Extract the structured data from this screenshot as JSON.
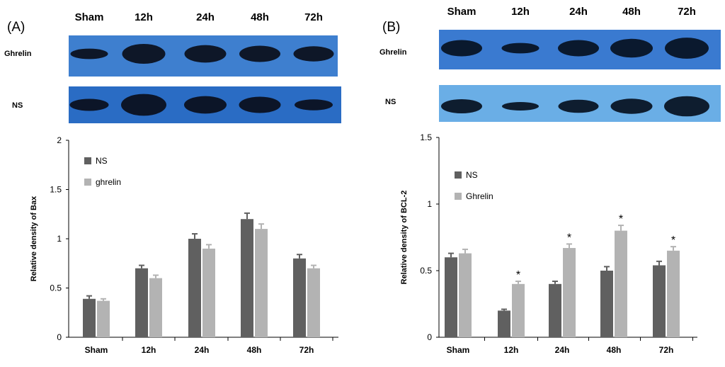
{
  "panels": [
    {
      "label": "(A)",
      "blot": {
        "lanes": [
          "Sham",
          "12h",
          "24h",
          "48h",
          "72h"
        ],
        "rows": [
          {
            "label": "Ghrelin",
            "bg": "#3e7fcf",
            "bands": [
              0.45,
              0.85,
              0.75,
              0.7,
              0.65
            ]
          },
          {
            "label": "NS",
            "bg": "#2a6cc4",
            "bands": [
              0.55,
              1.0,
              0.8,
              0.75,
              0.5
            ]
          }
        ],
        "band_color": "#0a0e1a"
      },
      "chart_data": {
        "type": "bar",
        "categories": [
          "Sham",
          "12h",
          "24h",
          "48h",
          "72h"
        ],
        "series": [
          {
            "name": "NS",
            "values": [
              0.39,
              0.7,
              1.0,
              1.2,
              0.8
            ],
            "errors": [
              0.03,
              0.03,
              0.05,
              0.06,
              0.04
            ],
            "color": "#606060"
          },
          {
            "name": "ghrelin",
            "values": [
              0.37,
              0.6,
              0.9,
              1.1,
              0.7
            ],
            "errors": [
              0.02,
              0.03,
              0.04,
              0.05,
              0.03
            ],
            "color": "#b3b3b3"
          }
        ],
        "ylabel": "Relative density of Bax",
        "ylim": [
          0,
          2
        ],
        "yticks": [
          "0",
          "0.5",
          "1",
          "1.5",
          "2"
        ],
        "legend_position": "top-left",
        "significance": [
          "",
          "",
          "",
          "",
          ""
        ]
      }
    },
    {
      "label": "(B)",
      "blot": {
        "lanes": [
          "Sham",
          "12h",
          "24h",
          "48h",
          "72h"
        ],
        "rows": [
          {
            "label": "Ghrelin",
            "bg": "#3a7ad0",
            "bands": [
              0.7,
              0.45,
              0.7,
              0.8,
              0.9
            ]
          },
          {
            "label": "NS",
            "bg": "#6aaee6",
            "bands": [
              0.7,
              0.4,
              0.65,
              0.75,
              1.0
            ]
          }
        ],
        "band_color": "#061020"
      },
      "chart_data": {
        "type": "bar",
        "categories": [
          "Sham",
          "12h",
          "24h",
          "48h",
          "72h"
        ],
        "series": [
          {
            "name": "NS",
            "values": [
              0.6,
              0.2,
              0.4,
              0.5,
              0.54
            ],
            "errors": [
              0.03,
              0.01,
              0.02,
              0.03,
              0.03
            ],
            "color": "#606060"
          },
          {
            "name": "Ghrelin",
            "values": [
              0.63,
              0.4,
              0.67,
              0.8,
              0.65
            ],
            "errors": [
              0.03,
              0.02,
              0.03,
              0.04,
              0.03
            ],
            "color": "#b3b3b3"
          }
        ],
        "ylabel": "Relative density of BCL-2",
        "ylim": [
          0,
          1.5
        ],
        "yticks": [
          "0",
          "0.5",
          "1",
          "1.5"
        ],
        "legend_position": "top-left",
        "significance": [
          "",
          "*",
          "*",
          "*",
          "*"
        ]
      }
    }
  ]
}
